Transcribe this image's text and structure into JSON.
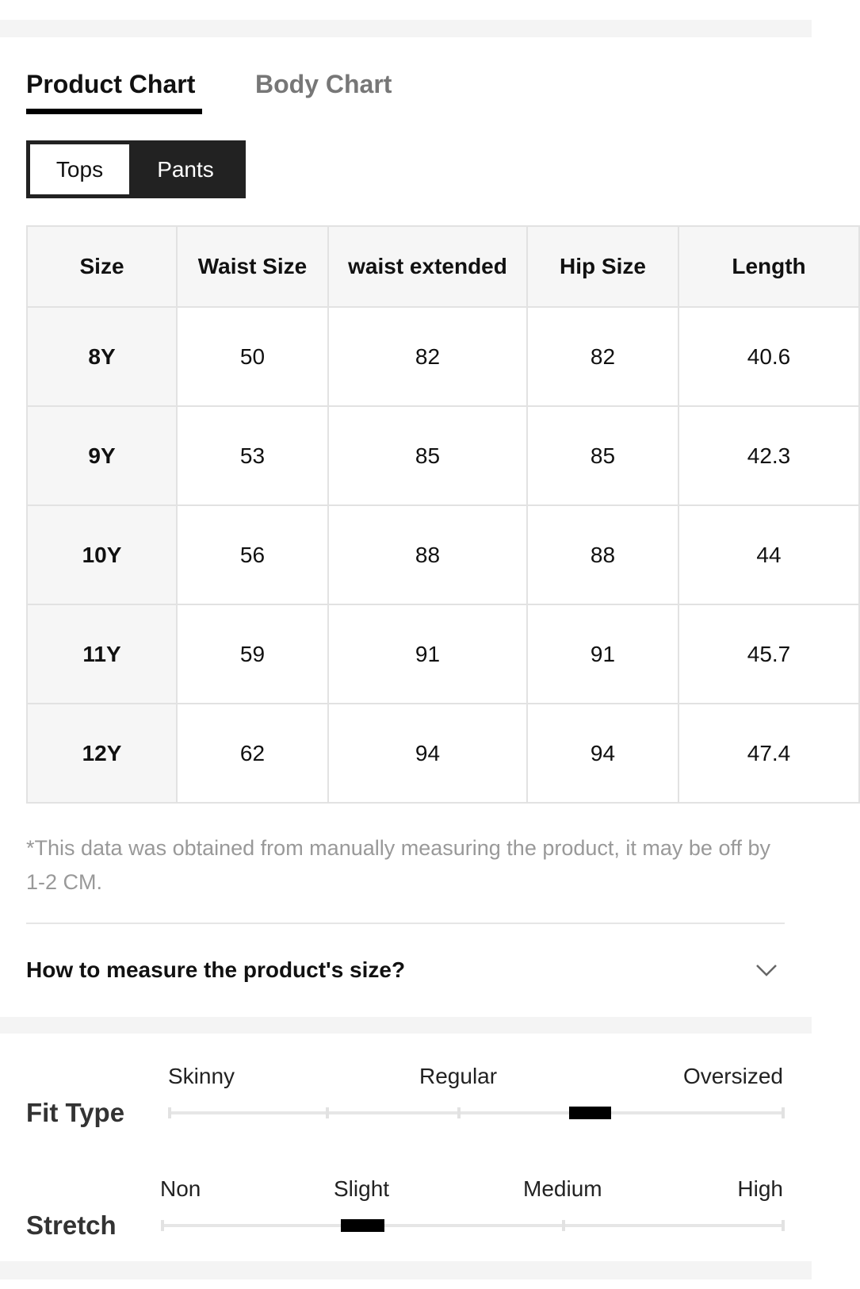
{
  "tabs": [
    "Product Chart",
    "Body Chart"
  ],
  "toggle": [
    "Tops",
    "Pants"
  ],
  "table": {
    "headers": [
      "Size",
      "Waist Size",
      "waist extended",
      "Hip Size",
      "Length"
    ],
    "rows": [
      [
        "8Y",
        "50",
        "82",
        "82",
        "40.6"
      ],
      [
        "9Y",
        "53",
        "85",
        "85",
        "42.3"
      ],
      [
        "10Y",
        "56",
        "88",
        "88",
        "44"
      ],
      [
        "11Y",
        "59",
        "91",
        "91",
        "45.7"
      ],
      [
        "12Y",
        "62",
        "94",
        "94",
        "47.4"
      ]
    ]
  },
  "note": "*This data was obtained from manually measuring the product, it may be off by 1-2 CM.",
  "measure": "How to measure the product's size?",
  "fit": {
    "label": "Fit Type",
    "scale": [
      "Skinny",
      "Regular",
      "Oversized"
    ]
  },
  "stretch": {
    "label": "Stretch",
    "scale": [
      "Non",
      "Slight",
      "Medium",
      "High"
    ]
  }
}
